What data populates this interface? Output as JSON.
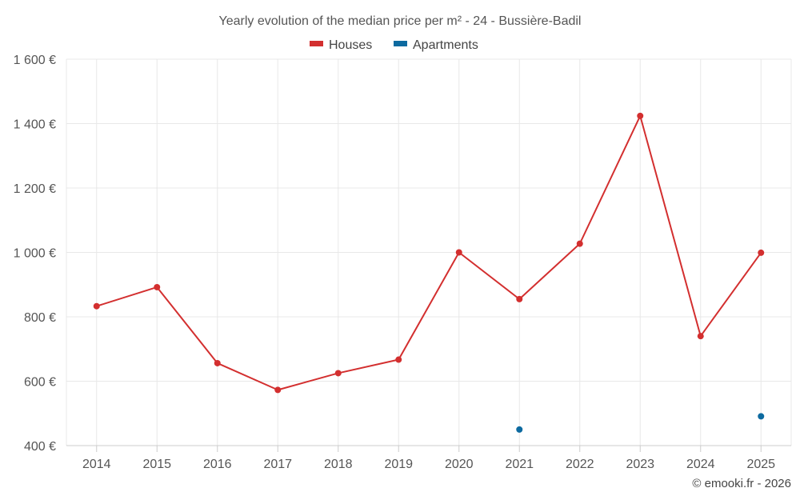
{
  "chart_data": {
    "type": "line",
    "title": "Yearly evolution of the median price per m² - 24 - Bussière-Badil",
    "xlabel": "",
    "ylabel": "",
    "categories": [
      "2014",
      "2015",
      "2016",
      "2017",
      "2018",
      "2019",
      "2020",
      "2021",
      "2022",
      "2023",
      "2024",
      "2025"
    ],
    "ylim": [
      400,
      1600
    ],
    "yticks": [
      400,
      600,
      800,
      1000,
      1200,
      1400,
      1600
    ],
    "ytick_labels": [
      "400 €",
      "600 €",
      "800 €",
      "1 000 €",
      "1 200 €",
      "1 400 €",
      "1 600 €"
    ],
    "grid": true,
    "legend_position": "top-center",
    "series": [
      {
        "name": "Houses",
        "color": "#d32f2f",
        "style": "line-markers",
        "values": [
          833,
          892,
          656,
          573,
          625,
          667,
          1000,
          855,
          1027,
          1424,
          740,
          999
        ]
      },
      {
        "name": "Apartments",
        "color": "#0d6aa0",
        "style": "markers",
        "values": [
          null,
          null,
          null,
          null,
          null,
          null,
          null,
          450,
          null,
          null,
          null,
          491
        ]
      }
    ],
    "credit": "© emooki.fr - 2026"
  }
}
